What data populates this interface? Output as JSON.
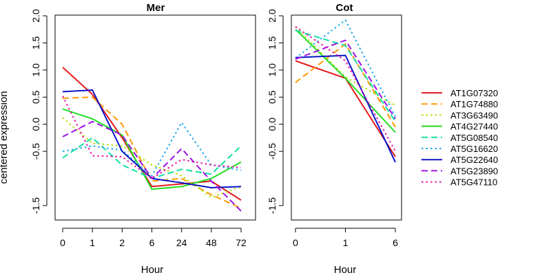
{
  "chart_data": [
    {
      "type": "line",
      "title": "Mer",
      "xlabel": "Hour",
      "ylabel": "centered expression",
      "categories": [
        "0",
        "1",
        "2",
        "6",
        "24",
        "48",
        "72"
      ],
      "ylim": [
        -1.7,
        2.0
      ],
      "yticks": [
        -1.5,
        -0.5,
        0.0,
        0.5,
        1.0,
        1.5,
        2.0
      ],
      "ytick_labels": [
        "-1.5",
        "-0.5",
        "0.0",
        "0.5",
        "1.0",
        "1.5",
        "2.0"
      ],
      "grid": false,
      "series": [
        {
          "name": "AT1G07320",
          "values": [
            1.05,
            0.55,
            -0.25,
            -1.15,
            -1.1,
            -1.05,
            -1.4
          ]
        },
        {
          "name": "AT1G74880",
          "values": [
            0.48,
            0.5,
            0.0,
            -1.05,
            -1.0,
            -1.3,
            -1.55
          ]
        },
        {
          "name": "AT3G63490",
          "values": [
            0.12,
            -0.35,
            -0.4,
            -0.75,
            -0.95,
            -1.35,
            -1.15
          ]
        },
        {
          "name": "AT4G27440",
          "values": [
            0.28,
            0.1,
            -0.2,
            -1.2,
            -1.15,
            -1.0,
            -0.7
          ]
        },
        {
          "name": "AT5G08540",
          "values": [
            -0.62,
            -0.25,
            -0.75,
            -1.0,
            -0.83,
            -0.92,
            -0.4
          ]
        },
        {
          "name": "AT5G16620",
          "values": [
            -0.5,
            -0.4,
            -0.48,
            -0.95,
            0.03,
            -0.75,
            -0.85
          ]
        },
        {
          "name": "AT5G22640",
          "values": [
            0.6,
            0.63,
            -0.5,
            -1.0,
            -1.08,
            -1.17,
            -1.15
          ]
        },
        {
          "name": "AT5G23890",
          "values": [
            -0.23,
            0.05,
            -0.2,
            -1.0,
            -0.45,
            -1.05,
            -1.6
          ]
        },
        {
          "name": "AT5G47110",
          "values": [
            0.52,
            -0.58,
            -0.6,
            -1.0,
            -0.65,
            -0.75,
            -0.8
          ]
        }
      ]
    },
    {
      "type": "line",
      "title": "Cot",
      "xlabel": "Hour",
      "categories": [
        "0",
        "1",
        "6"
      ],
      "ylim": [
        -1.7,
        2.0
      ],
      "yticks": [
        -1.5,
        -0.5,
        0.0,
        0.5,
        1.0,
        1.5,
        2.0
      ],
      "ytick_labels": [
        "-1.5",
        "-0.5",
        "0.0",
        "0.5",
        "1.0",
        "1.5",
        "2.0"
      ],
      "grid": false,
      "series": [
        {
          "name": "AT1G07320",
          "values": [
            1.17,
            0.85,
            -0.6
          ]
        },
        {
          "name": "AT1G74880",
          "values": [
            0.77,
            1.48,
            -0.05
          ]
        },
        {
          "name": "AT3G63490",
          "values": [
            1.8,
            0.87,
            0.35
          ]
        },
        {
          "name": "AT4G27440",
          "values": [
            1.75,
            0.85,
            -0.15
          ]
        },
        {
          "name": "AT5G08540",
          "values": [
            1.73,
            1.45,
            0.05
          ]
        },
        {
          "name": "AT5G16620",
          "values": [
            1.22,
            1.92,
            0.14
          ]
        },
        {
          "name": "AT5G22640",
          "values": [
            1.23,
            1.27,
            -0.7
          ]
        },
        {
          "name": "AT5G23890",
          "values": [
            1.2,
            1.55,
            0.1
          ]
        },
        {
          "name": "AT5G47110",
          "values": [
            1.8,
            1.17,
            -0.5
          ]
        }
      ]
    }
  ],
  "legend": {
    "placement": "right",
    "entries": [
      {
        "name": "AT1G07320",
        "color": "#e41a1c",
        "dash": "solid"
      },
      {
        "name": "AT1G74880",
        "color": "#ff9900",
        "dash": "dashed"
      },
      {
        "name": "AT3G63490",
        "color": "#b3e000",
        "dash": "dotted"
      },
      {
        "name": "AT4G27440",
        "color": "#22dd22",
        "dash": "solid"
      },
      {
        "name": "AT5G08540",
        "color": "#11e0a0",
        "dash": "dashed"
      },
      {
        "name": "AT5G16620",
        "color": "#1aa7ee",
        "dash": "dotted"
      },
      {
        "name": "AT5G22640",
        "color": "#0a14c8",
        "dash": "solid"
      },
      {
        "name": "AT5G23890",
        "color": "#9a11e6",
        "dash": "dashed"
      },
      {
        "name": "AT5G47110",
        "color": "#ee11aa",
        "dash": "dotted"
      }
    ]
  }
}
